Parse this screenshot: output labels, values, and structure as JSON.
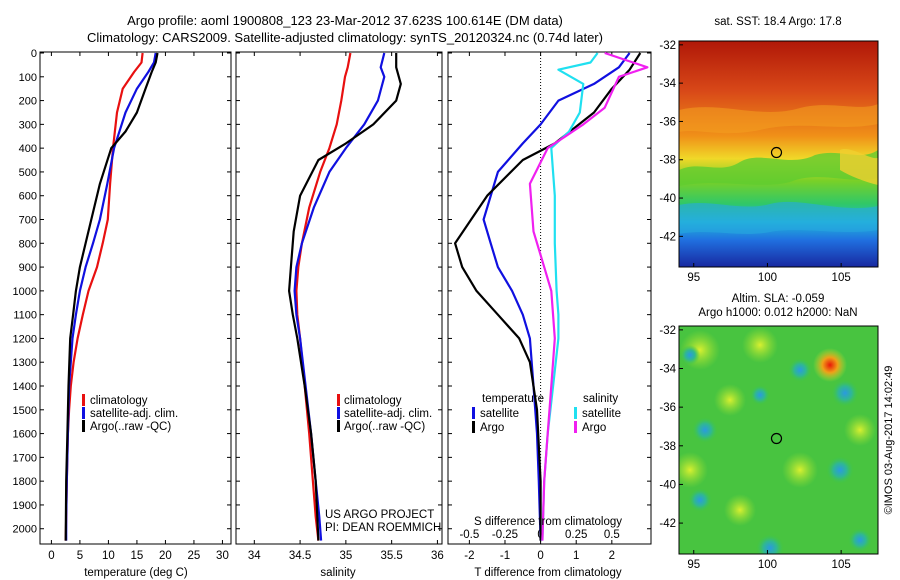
{
  "header": {
    "line1": "Argo profile: aoml 1900808_123 23-Mar-2012 37.623S 100.614E (DM data)",
    "line2": "Climatology: CARS2009. Satellite-adjusted climatology: synTS_20120324.nc (0.74d later)"
  },
  "colors": {
    "climatology": "#e81010",
    "satellite": "#1010e0",
    "argo": "#000000",
    "cyan": "#20e0f0",
    "magenta": "#f020f0"
  },
  "credits": {
    "line1": "US ARGO PROJECT",
    "line2": "PI: DEAN ROEMMICH"
  },
  "timestamp": "©IMOS 03-Aug-2017 14:02:49",
  "sst_title": "sat. SST: 18.4 Argo: 17.8",
  "sla_title1": "Altim. SLA: -0.059",
  "sla_title2": "Argo h1000: 0.012 h2000: NaN",
  "chart_data": [
    {
      "type": "line",
      "name": "temperature",
      "xlabel": "temperature (deg C)",
      "xlim": [
        -2,
        31.5
      ],
      "xticks": [
        0,
        5,
        10,
        15,
        20,
        25,
        30
      ],
      "ylim": [
        0,
        2060
      ],
      "yticks": [
        0,
        100,
        200,
        300,
        400,
        500,
        600,
        700,
        800,
        900,
        1000,
        1100,
        1200,
        1300,
        1400,
        1500,
        1600,
        1700,
        1800,
        1900,
        2000
      ],
      "legend": [
        "climatology",
        "satellite-adj. clim.",
        "Argo(..raw -QC)"
      ],
      "series": [
        {
          "name": "climatology",
          "color": "climatology",
          "x": [
            16.0,
            15.8,
            14.5,
            12.5,
            11.5,
            10.8,
            10.3,
            9.9,
            9.0,
            8.0,
            6.5,
            5.5,
            4.6,
            3.9,
            3.4,
            3.1,
            2.9,
            2.7,
            2.6,
            2.5
          ],
          "y": [
            0,
            40,
            80,
            150,
            250,
            400,
            550,
            700,
            800,
            900,
            1000,
            1100,
            1200,
            1300,
            1400,
            1500,
            1600,
            1800,
            1950,
            2050
          ]
        },
        {
          "name": "satellite-adj. clim.",
          "color": "satellite",
          "x": [
            18.3,
            18.0,
            17.0,
            15.0,
            13.0,
            11.0,
            9.8,
            8.5,
            7.3,
            6.0,
            5.0,
            4.3,
            3.7,
            3.4,
            3.1,
            2.9,
            2.7,
            2.6,
            2.6
          ],
          "y": [
            0,
            40,
            80,
            150,
            250,
            400,
            550,
            700,
            800,
            900,
            1000,
            1100,
            1200,
            1300,
            1400,
            1600,
            1800,
            1950,
            2050
          ]
        },
        {
          "name": "Argo(..raw -QC)",
          "color": "argo",
          "x": [
            18.6,
            18.3,
            17.6,
            16.5,
            15.0,
            13.0,
            10.5,
            8.5,
            7.0,
            6.0,
            5.0,
            4.3,
            3.8,
            3.3,
            3.0,
            2.8,
            2.6,
            2.5
          ],
          "y": [
            0,
            40,
            80,
            150,
            250,
            330,
            400,
            550,
            700,
            800,
            900,
            1000,
            1100,
            1200,
            1400,
            1600,
            1800,
            2050
          ]
        }
      ]
    },
    {
      "type": "line",
      "name": "salinity",
      "xlabel": "salinity",
      "xlim": [
        33.8,
        36.05
      ],
      "xticks": [
        34,
        34.5,
        35,
        35.5,
        36
      ],
      "ylim": [
        0,
        2060
      ],
      "legend": [
        "climatology",
        "satellite-adj. clim.",
        "Argo(..raw -QC)"
      ],
      "series": [
        {
          "name": "climatology",
          "color": "climatology",
          "x": [
            35.05,
            35.02,
            34.99,
            34.95,
            34.9,
            34.82,
            34.72,
            34.6,
            34.52,
            34.48,
            34.46,
            34.47,
            34.5,
            34.55,
            34.6,
            34.64,
            34.67,
            34.7
          ],
          "y": [
            0,
            60,
            100,
            200,
            300,
            400,
            500,
            650,
            800,
            900,
            1000,
            1100,
            1200,
            1400,
            1600,
            1800,
            1950,
            2050
          ]
        },
        {
          "name": "satellite-adj. clim.",
          "color": "satellite",
          "x": [
            35.42,
            35.38,
            35.42,
            35.35,
            35.2,
            35.0,
            34.82,
            34.65,
            34.52,
            34.46,
            34.44,
            34.46,
            34.5,
            34.56,
            34.62,
            34.67,
            34.71,
            34.73
          ],
          "y": [
            0,
            60,
            100,
            200,
            300,
            400,
            500,
            650,
            800,
            900,
            1000,
            1100,
            1200,
            1400,
            1600,
            1800,
            1950,
            2050
          ]
        },
        {
          "name": "Argo(..raw -QC)",
          "color": "argo",
          "x": [
            35.55,
            35.55,
            35.6,
            35.55,
            35.3,
            35.0,
            34.7,
            34.5,
            34.43,
            34.4,
            34.38,
            34.42,
            34.47,
            34.55,
            34.62,
            34.67,
            34.7
          ],
          "y": [
            0,
            60,
            130,
            200,
            300,
            380,
            450,
            600,
            750,
            900,
            1000,
            1100,
            1200,
            1400,
            1600,
            1800,
            2050
          ]
        }
      ]
    },
    {
      "type": "line",
      "name": "difference",
      "xlabel": "T difference from climatology",
      "xlabel_top": "S difference from climatology",
      "xlim": [
        -2.6,
        3.1
      ],
      "xticks": [
        -2,
        -1,
        0,
        1,
        2
      ],
      "sticks_labels": [
        "-0.5",
        "-0.25",
        "0",
        "0.25",
        "0.5"
      ],
      "sticks_pos": [
        -2,
        -1,
        0,
        1,
        2
      ],
      "ylim": [
        0,
        2060
      ],
      "legend_headers": [
        "temperature",
        "salinity"
      ],
      "legend": [
        "satellite",
        "Argo",
        "satellite",
        "Argo"
      ],
      "series": [
        {
          "name": "T satellite",
          "color": "satellite",
          "x": [
            2.5,
            2.2,
            1.5,
            0.5,
            0,
            -0.5,
            -1.2,
            -1.6,
            -1.4,
            -1.2,
            -0.8,
            -0.5,
            -0.3,
            -0.2,
            -0.1,
            -0.05,
            0
          ],
          "y": [
            0,
            60,
            130,
            200,
            300,
            380,
            500,
            700,
            800,
            900,
            1000,
            1100,
            1200,
            1400,
            1600,
            1800,
            2050
          ]
        },
        {
          "name": "T Argo",
          "color": "argo",
          "x": [
            2.8,
            2.5,
            2.0,
            1.5,
            0.4,
            -0.5,
            -1.5,
            -2.4,
            -2.2,
            -1.8,
            -1.2,
            -0.6,
            -0.3,
            -0.1,
            0,
            0
          ],
          "y": [
            0,
            70,
            150,
            250,
            380,
            450,
            600,
            800,
            900,
            1000,
            1100,
            1200,
            1300,
            1500,
            1800,
            2050
          ]
        },
        {
          "name": "S satellite",
          "color": "cyan",
          "x": [
            1.6,
            1.4,
            0.5,
            1.2,
            1.1,
            0.8,
            0.3,
            0.4,
            0.4,
            0.45,
            0.5,
            0.5,
            0.35,
            0.2,
            0.1,
            0.05
          ],
          "y": [
            0,
            40,
            70,
            130,
            250,
            330,
            400,
            600,
            800,
            1000,
            1100,
            1200,
            1400,
            1600,
            1800,
            2050
          ]
        },
        {
          "name": "S Argo",
          "color": "magenta",
          "x": [
            1.8,
            3.0,
            2.2,
            1.8,
            1.2,
            0.7,
            0.2,
            -0.3,
            -0.2,
            0.1,
            0.3,
            0.4,
            0.3,
            0.2,
            0.1,
            0.05
          ],
          "y": [
            0,
            60,
            100,
            230,
            300,
            350,
            400,
            550,
            750,
            900,
            1000,
            1200,
            1400,
            1600,
            1800,
            2050
          ]
        }
      ]
    },
    {
      "type": "heatmap",
      "name": "sst map",
      "title": "sat. SST: 18.4 Argo: 17.8",
      "xlim": [
        94,
        107.5
      ],
      "ylim": [
        -43.6,
        -31.8
      ],
      "xticks": [
        95,
        100,
        105
      ],
      "yticks": [
        -32,
        -34,
        -36,
        -38,
        -40,
        -42
      ],
      "marker": {
        "lon": 100.614,
        "lat": -37.623
      }
    },
    {
      "type": "heatmap",
      "name": "sla map",
      "title": "Altim. SLA: -0.059",
      "xlim": [
        94,
        107.5
      ],
      "ylim": [
        -43.6,
        -31.8
      ],
      "xticks": [
        95,
        100,
        105
      ],
      "yticks": [
        -32,
        -34,
        -36,
        -38,
        -40,
        -42
      ],
      "marker": {
        "lon": 100.614,
        "lat": -37.623
      }
    }
  ]
}
